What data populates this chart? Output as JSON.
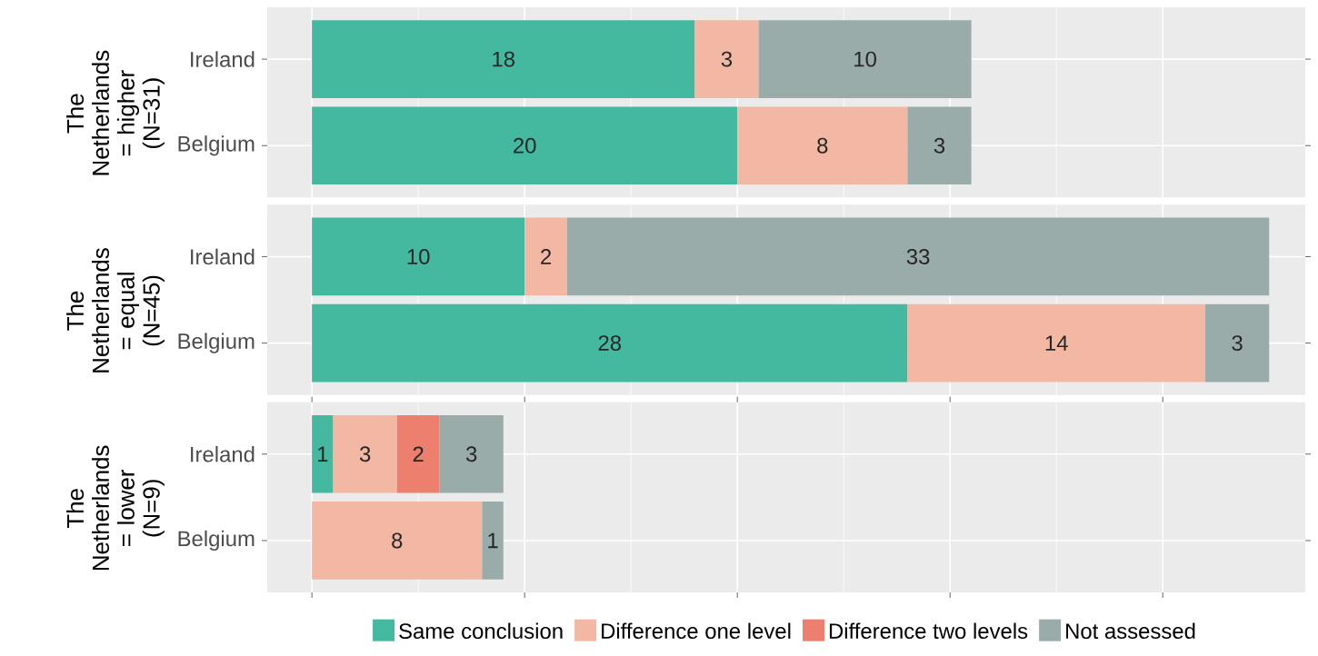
{
  "chart_data": [
    {
      "type": "bar",
      "orientation": "horizontal",
      "stacked": true,
      "ylabel": "The Netherlands = higher (N=31)",
      "categories": [
        "Ireland",
        "Belgium"
      ],
      "xlim": [
        -2.1,
        46.7
      ],
      "xticks": [
        {
          "value": 0,
          "label": null
        },
        {
          "value": 10,
          "label": null
        },
        {
          "value": 20,
          "label": null
        },
        {
          "value": 30,
          "label": null
        },
        {
          "value": 40,
          "label": null
        }
      ],
      "tick_labels": "y",
      "grid": true,
      "data_labels": true,
      "series": [
        {
          "color": "#45b8a0",
          "values": [
            18,
            20
          ]
        },
        {
          "color": "#f3b8a3",
          "values": [
            3,
            8
          ]
        },
        {
          "color": "#ec7f6d",
          "values": [
            null,
            null
          ]
        },
        {
          "color": "#9aaca9",
          "values": [
            10,
            3
          ]
        }
      ]
    },
    {
      "type": "bar",
      "orientation": "horizontal",
      "stacked": true,
      "ylabel": "The Netherlands = equal (N=45)",
      "categories": [
        "Ireland",
        "Belgium"
      ],
      "xlim": [
        -2.1,
        46.7
      ],
      "xticks": [
        {
          "value": 0,
          "label": null
        },
        {
          "value": 10,
          "label": null
        },
        {
          "value": 20,
          "label": null
        },
        {
          "value": 30,
          "label": null
        },
        {
          "value": 40,
          "label": null
        }
      ],
      "tick_labels": "y",
      "grid": true,
      "data_labels": true,
      "series": [
        {
          "color": "#45b8a0",
          "values": [
            10,
            28
          ]
        },
        {
          "color": "#f3b8a3",
          "values": [
            2,
            14
          ]
        },
        {
          "color": "#ec7f6d",
          "values": [
            null,
            null
          ]
        },
        {
          "color": "#9aaca9",
          "values": [
            33,
            3
          ]
        }
      ]
    },
    {
      "type": "bar",
      "orientation": "horizontal",
      "stacked": true,
      "ylabel": "The Netherlands = lower (N=9)",
      "categories": [
        "Ireland",
        "Belgium"
      ],
      "xlim": [
        -2.1,
        46.7
      ],
      "xticks": [
        {
          "value": 0,
          "label": null
        },
        {
          "value": 10,
          "label": null
        },
        {
          "value": 20,
          "label": null
        },
        {
          "value": 30,
          "label": null
        },
        {
          "value": 40,
          "label": null
        }
      ],
      "tick_labels": "y",
      "grid": true,
      "data_labels": true,
      "legend": "bottom",
      "series": [
        {
          "name": "Same conclusion",
          "color": "#45b8a0",
          "values": [
            1,
            null
          ]
        },
        {
          "name": "Difference one level",
          "color": "#f3b8a3",
          "values": [
            3,
            8
          ]
        },
        {
          "name": "Difference two levels",
          "color": "#ec7f6d",
          "values": [
            2,
            null
          ]
        },
        {
          "name": "Not assessed",
          "color": "#9aaca9",
          "values": [
            3,
            1
          ]
        }
      ]
    }
  ]
}
